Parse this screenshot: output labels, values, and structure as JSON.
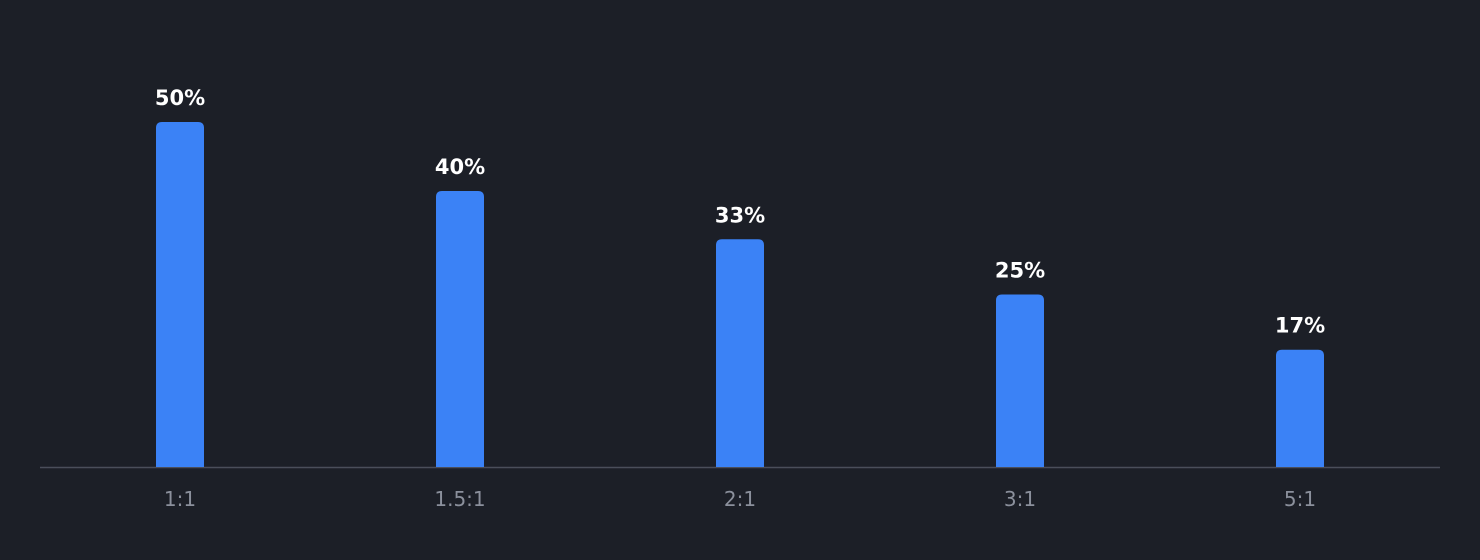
{
  "chart_data": {
    "type": "bar",
    "categories": [
      "1:1",
      "1.5:1",
      "2:1",
      "3:1",
      "5:1"
    ],
    "values": [
      50,
      40,
      33,
      25,
      17
    ],
    "value_labels": [
      "50%",
      "40%",
      "33%",
      "25%",
      "17%"
    ],
    "color": "#3b82f6"
  }
}
